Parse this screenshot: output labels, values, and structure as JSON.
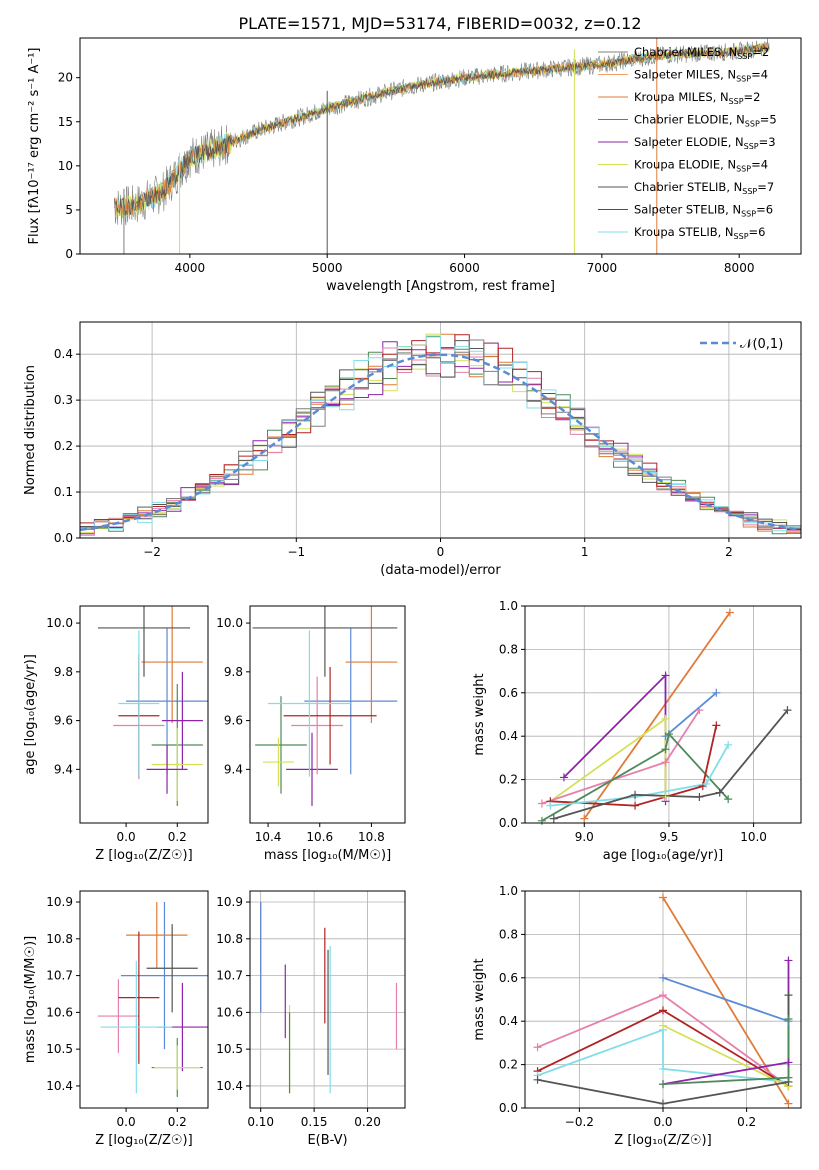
{
  "title": "PLATE=1571, MJD=53174, FIBERID=0032, z=0.12",
  "colors": [
    "#7f7f7f",
    "#e07b39",
    "#e07b39",
    "#4f8a5a",
    "#8e24aa",
    "#d4e157",
    "#555555",
    "#b22222",
    "#80deea"
  ],
  "chart_data": [
    {
      "id": "spectrum",
      "type": "line",
      "xlabel": "wavelength [Angstrom, rest frame]",
      "ylabel": "Flux [fλ10⁻¹⁷ erg cm⁻² s⁻¹ A⁻¹]",
      "xlim": [
        3200,
        8450
      ],
      "ylim": [
        0,
        24.5
      ],
      "xticks": [
        4000,
        5000,
        6000,
        7000,
        8000
      ],
      "yticks": [
        0,
        5,
        10,
        15,
        20
      ],
      "continuum": [
        [
          3450,
          5.3
        ],
        [
          3600,
          5.5
        ],
        [
          3800,
          7
        ],
        [
          4000,
          11
        ],
        [
          4200,
          12
        ],
        [
          4500,
          14
        ],
        [
          4800,
          15.5
        ],
        [
          5000,
          16.5
        ],
        [
          5300,
          17.8
        ],
        [
          5600,
          19
        ],
        [
          6000,
          20
        ],
        [
          6500,
          20.8
        ],
        [
          7000,
          21.5
        ],
        [
          7400,
          22.5
        ],
        [
          8000,
          23
        ],
        [
          8220,
          23.5
        ]
      ],
      "legend": [
        {
          "label": "Chabrier MILES, N_SSP=2",
          "color": "#7f7f7f"
        },
        {
          "label": "Salpeter MILES, N_SSP=4",
          "color": "#f4a261"
        },
        {
          "label": "Kroupa MILES, N_SSP=2",
          "color": "#e07b39"
        },
        {
          "label": "Chabrier ELODIE, N_SSP=5",
          "color": "#4f8a5a"
        },
        {
          "label": "Salpeter ELODIE, N_SSP=3",
          "color": "#8e24aa"
        },
        {
          "label": "Kroupa ELODIE, N_SSP=4",
          "color": "#d4e157"
        },
        {
          "label": "Chabrier STELIB, N_SSP=7",
          "color": "#555555"
        },
        {
          "label": "Salpeter STELIB, N_SSP=6",
          "color": "#b22222"
        },
        {
          "label": "Kroupa STELIB, N_SSP=6",
          "color": "#80deea"
        }
      ]
    },
    {
      "id": "residuals",
      "type": "histogram",
      "xlabel": "(data-model)/error",
      "ylabel": "Normed distribution",
      "xlim": [
        -2.5,
        2.5
      ],
      "ylim": [
        0,
        0.47
      ],
      "xticks": [
        -2,
        -1,
        0,
        1,
        2
      ],
      "yticks": [
        0.0,
        0.1,
        0.2,
        0.3,
        0.4
      ],
      "grid": true,
      "legend_label": "𝒩(0,1)",
      "legend_position": "top-right",
      "curve_color": "#5b8bd6"
    },
    {
      "id": "age_vs_Z",
      "type": "errorbar",
      "xlabel": "Z [log₁₀(Z/Z☉)]",
      "ylabel": "age  [log₁₀(age/yr)]",
      "xlim": [
        -0.18,
        0.32
      ],
      "ylim": [
        9.18,
        10.07
      ],
      "xticks": [
        0.0,
        0.2
      ],
      "yticks": [
        9.4,
        9.6,
        9.8,
        10.0
      ],
      "points": [
        {
          "x": 0.16,
          "y": 9.68,
          "xerr": 0.16,
          "yerr": 0.3,
          "color": "#5b8bd6"
        },
        {
          "x": 0.18,
          "y": 9.84,
          "xerr": 0.12,
          "yerr": 0.25,
          "color": "#e07b39"
        },
        {
          "x": 0.2,
          "y": 9.5,
          "xerr": 0.1,
          "yerr": 0.25,
          "color": "#4f8a5a"
        },
        {
          "x": 0.22,
          "y": 9.6,
          "xerr": 0.08,
          "yerr": 0.2,
          "color": "#8e24aa"
        },
        {
          "x": 0.2,
          "y": 9.42,
          "xerr": 0.1,
          "yerr": 0.15,
          "color": "#d4e157"
        },
        {
          "x": 0.05,
          "y": 9.58,
          "xerr": 0.1,
          "yerr": 0.22,
          "color": "#e57fab"
        },
        {
          "x": 0.07,
          "y": 9.98,
          "xerr": 0.18,
          "yerr": 0.2,
          "color": "#555555"
        },
        {
          "x": 0.05,
          "y": 9.62,
          "xerr": 0.08,
          "yerr": 0.25,
          "color": "#b22222"
        },
        {
          "x": 0.05,
          "y": 9.67,
          "xerr": 0.08,
          "yerr": 0.3,
          "color": "#80deea"
        },
        {
          "x": 0.16,
          "y": 9.4,
          "xerr": 0.08,
          "yerr": 0.1,
          "color": "#8e24aa"
        }
      ]
    },
    {
      "id": "age_vs_mass",
      "type": "errorbar",
      "xlabel": "mass [log₁₀(M/M☉)]",
      "ylabel": "",
      "xlim": [
        10.33,
        10.93
      ],
      "ylim": [
        9.18,
        10.07
      ],
      "xticks": [
        10.4,
        10.6,
        10.8
      ],
      "yticks": [
        9.4,
        9.6,
        9.8,
        10.0
      ],
      "points": [
        {
          "x": 10.72,
          "y": 9.68,
          "xerr": 0.18,
          "yerr": 0.3,
          "color": "#5b8bd6"
        },
        {
          "x": 10.8,
          "y": 9.84,
          "xerr": 0.1,
          "yerr": 0.25,
          "color": "#e07b39"
        },
        {
          "x": 10.45,
          "y": 9.5,
          "xerr": 0.1,
          "yerr": 0.2,
          "color": "#4f8a5a"
        },
        {
          "x": 10.57,
          "y": 9.4,
          "xerr": 0.1,
          "yerr": 0.15,
          "color": "#8e24aa"
        },
        {
          "x": 10.44,
          "y": 9.43,
          "xerr": 0.06,
          "yerr": 0.1,
          "color": "#d4e157"
        },
        {
          "x": 10.59,
          "y": 9.58,
          "xerr": 0.1,
          "yerr": 0.2,
          "color": "#e57fab"
        },
        {
          "x": 10.62,
          "y": 9.98,
          "xerr": 0.28,
          "yerr": 0.2,
          "color": "#555555"
        },
        {
          "x": 10.64,
          "y": 9.62,
          "xerr": 0.18,
          "yerr": 0.2,
          "color": "#b22222"
        },
        {
          "x": 10.56,
          "y": 9.67,
          "xerr": 0.16,
          "yerr": 0.3,
          "color": "#80deea"
        }
      ]
    },
    {
      "id": "weight_vs_age",
      "type": "line",
      "xlabel": "age  [log₁₀(age/yr)]",
      "ylabel": "mass weight",
      "xlim": [
        8.65,
        10.28
      ],
      "ylim": [
        0,
        1.0
      ],
      "xticks": [
        9.0,
        9.5,
        10.0
      ],
      "yticks": [
        0.0,
        0.2,
        0.4,
        0.6,
        0.8,
        1.0
      ],
      "grid": true,
      "series": [
        {
          "color": "#e07b39",
          "x": [
            9.0,
            9.86
          ],
          "y": [
            0.02,
            0.97
          ]
        },
        {
          "color": "#5b8bd6",
          "x": [
            9.48,
            9.78
          ],
          "y": [
            0.4,
            0.6
          ]
        },
        {
          "color": "#8e24aa",
          "x": [
            8.88,
            9.48,
            9.48
          ],
          "y": [
            0.21,
            0.68,
            0.1
          ]
        },
        {
          "color": "#d4e157",
          "x": [
            8.8,
            9.48,
            9.48
          ],
          "y": [
            0.1,
            0.48,
            0.12
          ]
        },
        {
          "color": "#e57fab",
          "x": [
            8.75,
            9.48,
            9.68
          ],
          "y": [
            0.09,
            0.28,
            0.52
          ]
        },
        {
          "color": "#4f8a5a",
          "x": [
            8.75,
            9.48,
            9.5,
            9.85
          ],
          "y": [
            0.01,
            0.34,
            0.41,
            0.11
          ]
        },
        {
          "color": "#b22222",
          "x": [
            8.8,
            9.3,
            9.7,
            9.78
          ],
          "y": [
            0.1,
            0.08,
            0.17,
            0.45
          ]
        },
        {
          "color": "#80deea",
          "x": [
            8.8,
            9.3,
            9.72,
            9.85
          ],
          "y": [
            0.08,
            0.12,
            0.18,
            0.36
          ]
        },
        {
          "color": "#555555",
          "x": [
            8.82,
            9.3,
            9.68,
            9.8,
            10.2
          ],
          "y": [
            0.02,
            0.13,
            0.12,
            0.14,
            0.52
          ]
        }
      ]
    },
    {
      "id": "mass_vs_Z",
      "type": "errorbar",
      "xlabel": "Z [log₁₀(Z/Z☉)]",
      "ylabel": "mass [log₁₀(M/M☉)]",
      "xlim": [
        -0.18,
        0.32
      ],
      "ylim": [
        10.34,
        10.93
      ],
      "xticks": [
        0.0,
        0.2
      ],
      "yticks": [
        10.4,
        10.5,
        10.6,
        10.7,
        10.8,
        10.9
      ],
      "points": [
        {
          "x": 0.15,
          "y": 10.7,
          "xerr": 0.17,
          "yerr": 0.2,
          "color": "#5b8bd6"
        },
        {
          "x": 0.12,
          "y": 10.81,
          "xerr": 0.12,
          "yerr": 0.09,
          "color": "#e07b39"
        },
        {
          "x": 0.2,
          "y": 10.45,
          "xerr": 0.1,
          "yerr": 0.08,
          "color": "#4f8a5a"
        },
        {
          "x": 0.22,
          "y": 10.56,
          "xerr": 0.1,
          "yerr": 0.12,
          "color": "#8e24aa"
        },
        {
          "x": 0.2,
          "y": 10.45,
          "xerr": 0.09,
          "yerr": 0.06,
          "color": "#d4e157"
        },
        {
          "x": -0.03,
          "y": 10.59,
          "xerr": 0.08,
          "yerr": 0.1,
          "color": "#e57fab"
        },
        {
          "x": 0.18,
          "y": 10.72,
          "xerr": 0.1,
          "yerr": 0.12,
          "color": "#555555"
        },
        {
          "x": 0.05,
          "y": 10.64,
          "xerr": 0.08,
          "yerr": 0.18,
          "color": "#b22222"
        },
        {
          "x": 0.04,
          "y": 10.56,
          "xerr": 0.14,
          "yerr": 0.18,
          "color": "#80deea"
        }
      ]
    },
    {
      "id": "mass_vs_ebv",
      "type": "errorbar",
      "xlabel": "E(B-V)",
      "ylabel": "",
      "xlim": [
        0.09,
        0.235
      ],
      "ylim": [
        10.34,
        10.93
      ],
      "xticks": [
        0.1,
        0.15,
        0.2
      ],
      "yticks": [
        10.4,
        10.5,
        10.6,
        10.7,
        10.8,
        10.9
      ],
      "grid": true,
      "points": [
        {
          "x": 0.1,
          "y": 10.75,
          "xerr": 0,
          "yerr": 0.15,
          "color": "#e07b39"
        },
        {
          "x": 0.1,
          "y": 10.75,
          "xerr": 0,
          "yerr": 0.15,
          "color": "#5b8bd6"
        },
        {
          "x": 0.123,
          "y": 10.63,
          "xerr": 0,
          "yerr": 0.1,
          "color": "#8e24aa"
        },
        {
          "x": 0.127,
          "y": 10.5,
          "xerr": 0,
          "yerr": 0.12,
          "color": "#d4e157"
        },
        {
          "x": 0.127,
          "y": 10.49,
          "xerr": 0,
          "yerr": 0.11,
          "color": "#4f8a5a"
        },
        {
          "x": 0.16,
          "y": 10.7,
          "xerr": 0,
          "yerr": 0.13,
          "color": "#b22222"
        },
        {
          "x": 0.163,
          "y": 10.6,
          "xerr": 0,
          "yerr": 0.17,
          "color": "#555555"
        },
        {
          "x": 0.165,
          "y": 10.58,
          "xerr": 0,
          "yerr": 0.2,
          "color": "#80deea"
        },
        {
          "x": 0.227,
          "y": 10.59,
          "xerr": 0,
          "yerr": 0.09,
          "color": "#e57fab"
        }
      ]
    },
    {
      "id": "weight_vs_Z",
      "type": "line",
      "xlabel": "Z [log₁₀(Z/Z☉)]",
      "ylabel": "mass weight",
      "xlim": [
        -0.33,
        0.33
      ],
      "ylim": [
        0,
        1.0
      ],
      "xticks": [
        -0.2,
        0.0,
        0.2
      ],
      "yticks": [
        0.0,
        0.2,
        0.4,
        0.6,
        0.8,
        1.0
      ],
      "grid": true,
      "series": [
        {
          "color": "#e07b39",
          "x": [
            0.0,
            0.3
          ],
          "y": [
            0.97,
            0.02
          ]
        },
        {
          "color": "#5b8bd6",
          "x": [
            0.0,
            0.3
          ],
          "y": [
            0.6,
            0.4
          ]
        },
        {
          "color": "#e57fab",
          "x": [
            -0.3,
            0.0,
            0.3
          ],
          "y": [
            0.28,
            0.52,
            0.1
          ]
        },
        {
          "color": "#b22222",
          "x": [
            -0.3,
            0.0,
            0.3
          ],
          "y": [
            0.17,
            0.45,
            0.1
          ]
        },
        {
          "color": "#80deea",
          "x": [
            -0.3,
            0.0,
            0.0,
            0.3
          ],
          "y": [
            0.15,
            0.36,
            0.18,
            0.12
          ]
        },
        {
          "color": "#d4e157",
          "x": [
            0.0,
            0.3
          ],
          "y": [
            0.38,
            0.1
          ]
        },
        {
          "color": "#8e24aa",
          "x": [
            0.0,
            0.3,
            0.3
          ],
          "y": [
            0.11,
            0.21,
            0.68
          ]
        },
        {
          "color": "#555555",
          "x": [
            -0.3,
            0.0,
            0.3,
            0.3
          ],
          "y": [
            0.13,
            0.02,
            0.12,
            0.52
          ]
        },
        {
          "color": "#4f8a5a",
          "x": [
            0.0,
            0.3,
            0.3
          ],
          "y": [
            0.11,
            0.14,
            0.41
          ]
        }
      ]
    }
  ]
}
